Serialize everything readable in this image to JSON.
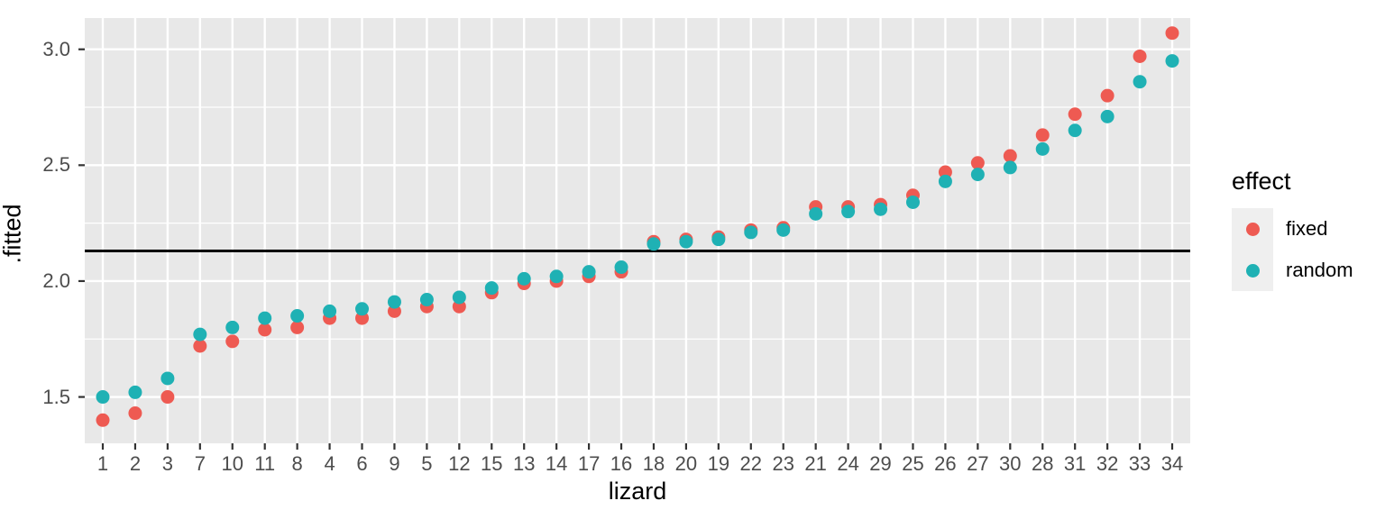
{
  "figure": {
    "panel_bg": "#e8e8e8",
    "grid_color": "#ffffff",
    "tick_color": "#333333",
    "tick_label_color": "#4d4d4d",
    "legend_key_bg": "#efefef"
  },
  "chart_data": {
    "type": "scatter",
    "title": "",
    "xlabel": "lizard",
    "ylabel": ".fitted",
    "x_categories": [
      "1",
      "2",
      "3",
      "7",
      "10",
      "11",
      "8",
      "4",
      "6",
      "9",
      "5",
      "12",
      "15",
      "13",
      "14",
      "17",
      "16",
      "18",
      "20",
      "19",
      "22",
      "23",
      "21",
      "24",
      "29",
      "25",
      "26",
      "27",
      "30",
      "28",
      "31",
      "32",
      "33",
      "34"
    ],
    "y_ticks": [
      1.5,
      2.0,
      2.5,
      3.0
    ],
    "y_minor_ticks": [
      1.75,
      2.25,
      2.75
    ],
    "ylim": [
      1.3,
      3.135
    ],
    "grid": true,
    "hline": {
      "y": 2.13,
      "color": "#000000"
    },
    "legend": {
      "title": "effect",
      "position": "right",
      "entries": [
        {
          "label": "fixed",
          "color": "#ee5a52"
        },
        {
          "label": "random",
          "color": "#1fb1b4"
        }
      ]
    },
    "series": [
      {
        "name": "fixed",
        "color": "#ee5a52",
        "values": [
          1.4,
          1.43,
          1.5,
          1.72,
          1.74,
          1.79,
          1.8,
          1.84,
          1.84,
          1.87,
          1.89,
          1.89,
          1.95,
          1.99,
          2.0,
          2.02,
          2.04,
          2.17,
          2.18,
          2.19,
          2.22,
          2.23,
          2.32,
          2.32,
          2.33,
          2.37,
          2.47,
          2.51,
          2.54,
          2.63,
          2.72,
          2.8,
          2.97,
          3.07
        ]
      },
      {
        "name": "random",
        "color": "#1fb1b4",
        "values": [
          1.5,
          1.52,
          1.58,
          1.77,
          1.8,
          1.84,
          1.85,
          1.87,
          1.88,
          1.91,
          1.92,
          1.93,
          1.97,
          2.01,
          2.02,
          2.04,
          2.06,
          2.16,
          2.17,
          2.18,
          2.21,
          2.22,
          2.29,
          2.3,
          2.31,
          2.34,
          2.43,
          2.46,
          2.49,
          2.57,
          2.65,
          2.71,
          2.86,
          2.95
        ]
      }
    ]
  }
}
